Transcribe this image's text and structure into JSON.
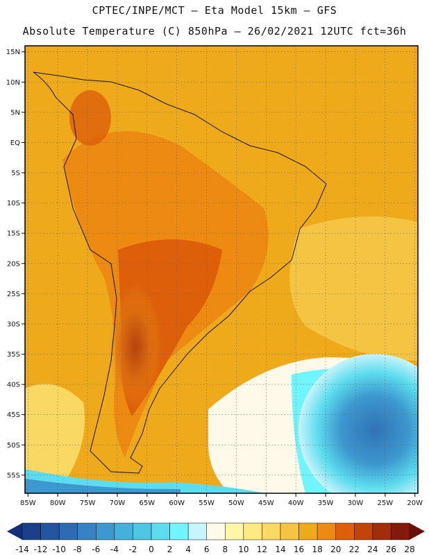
{
  "header": {
    "line1": "CPTEC/INPE/MCT –  Eta Model 15km – GFS",
    "line2": "Absolute Temperature (C) 850hPa – 26/02/2021 12UTC fct=36h"
  },
  "map": {
    "lon_range": [
      -85.5,
      -19.5
    ],
    "lat_range": [
      -58,
      16
    ],
    "x_ticks": [
      "85W",
      "80W",
      "75W",
      "70W",
      "65W",
      "60W",
      "55W",
      "50W",
      "45W",
      "40W",
      "35W",
      "30W",
      "25W",
      "20W"
    ],
    "x_tick_values": [
      -85,
      -80,
      -75,
      -70,
      -65,
      -60,
      -55,
      -50,
      -45,
      -40,
      -35,
      -30,
      -25,
      -20
    ],
    "y_ticks": [
      "15N",
      "10N",
      "5N",
      "EQ",
      "5S",
      "10S",
      "15S",
      "20S",
      "25S",
      "30S",
      "35S",
      "40S",
      "45S",
      "50S",
      "55S"
    ],
    "y_tick_values": [
      15,
      10,
      5,
      0,
      -5,
      -10,
      -15,
      -20,
      -25,
      -30,
      -35,
      -40,
      -45,
      -50,
      -55
    ]
  },
  "colorbar": {
    "labels": [
      "-14",
      "-12",
      "-10",
      "-8",
      "-6",
      "-4",
      "-2",
      "0",
      "2",
      "4",
      "6",
      "8",
      "10",
      "12",
      "14",
      "16",
      "18",
      "20",
      "22",
      "24",
      "26",
      "28"
    ],
    "colors": [
      "#1c3f8c",
      "#2455a0",
      "#2d6bb2",
      "#3682c2",
      "#3d98cf",
      "#45b0dc",
      "#4fc6e4",
      "#5cdcee",
      "#6ff5fb",
      "#c8f4fb",
      "#fff9ea",
      "#fff7a8",
      "#fdeb82",
      "#f9d964",
      "#f5c443",
      "#efaa1c",
      "#ec8a12",
      "#dd5f0a",
      "#c2440b",
      "#a32d0a",
      "#821b0b"
    ],
    "left_arrow_color": "#14307a",
    "right_arrow_color": "#6a0f0a"
  }
}
